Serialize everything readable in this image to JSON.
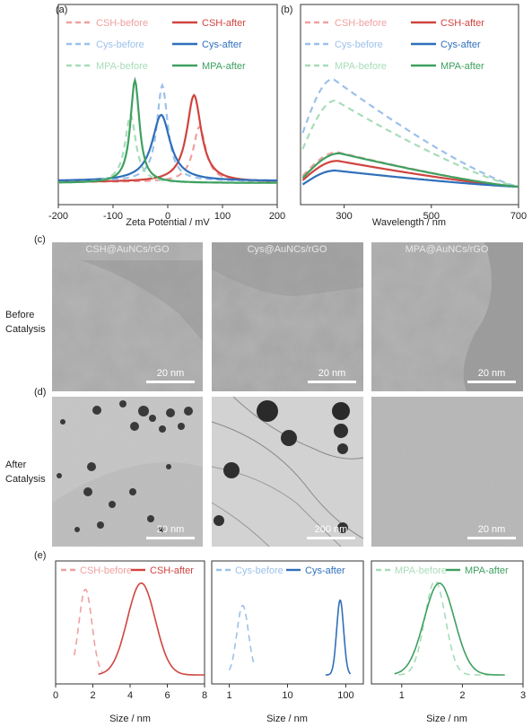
{
  "panel_labels": {
    "a": "(a)",
    "b": "(b)",
    "c": "(c)",
    "d": "(d)",
    "e": "(e)"
  },
  "colors": {
    "csh_before": "#f0a0a0",
    "csh_after": "#d0443f",
    "cys_before": "#9cc1ea",
    "cys_after": "#2f6fba",
    "mpa_before": "#a8dcb8",
    "mpa_after": "#3ea060"
  },
  "chart_data": [
    {
      "id": "a",
      "type": "line",
      "xlabel": "Zeta Potential / mV",
      "ylabel": "",
      "xlim": [
        -200,
        200
      ],
      "xticks": [
        -200,
        -100,
        0,
        100,
        200
      ],
      "yticks_shown": false,
      "legend_placement": "top",
      "series": [
        {
          "name": "CSH-before",
          "style": "dashed",
          "color": "#f0a0a0",
          "peak_x": 58,
          "width": 14,
          "peak_y": 0.58,
          "baseline": 0.02
        },
        {
          "name": "CSH-after",
          "style": "solid",
          "color": "#d0443f",
          "peak_x": 48,
          "width": 16,
          "peak_y": 0.9,
          "baseline": 0.02
        },
        {
          "name": "Cys-before",
          "style": "dashed",
          "color": "#9cc1ea",
          "peak_x": -10,
          "width": 12,
          "peak_y": 1.0,
          "baseline": 0.03
        },
        {
          "name": "Cys-after",
          "style": "solid",
          "color": "#2f6fba",
          "peak_x": -12,
          "width": 20,
          "peak_y": 0.7,
          "baseline": 0.03
        },
        {
          "name": "MPA-before",
          "style": "dashed",
          "color": "#a8dcb8",
          "peak_x": -68,
          "width": 12,
          "peak_y": 0.7,
          "baseline": 0.01
        },
        {
          "name": "MPA-after",
          "style": "solid",
          "color": "#3ea060",
          "peak_x": -60,
          "width": 10,
          "peak_y": 1.05,
          "baseline": 0.01
        }
      ]
    },
    {
      "id": "b",
      "type": "line",
      "xlabel": "Wavelength / nm",
      "ylabel": "",
      "xlim": [
        200,
        700
      ],
      "xticks": [
        300,
        500,
        700
      ],
      "yticks_shown": false,
      "legend_placement": "top",
      "series": [
        {
          "name": "CSH-before",
          "style": "dashed",
          "color": "#f0a0a0",
          "peak_x": 285,
          "peak_y": 0.32,
          "start_y": 0.1
        },
        {
          "name": "CSH-after",
          "style": "solid",
          "color": "#d0443f",
          "peak_x": 285,
          "peak_y": 0.24,
          "start_y": 0.06
        },
        {
          "name": "Cys-before",
          "style": "dashed",
          "color": "#9cc1ea",
          "peak_x": 275,
          "peak_y": 1.0,
          "start_y": 0.5
        },
        {
          "name": "Cys-after",
          "style": "solid",
          "color": "#2f6fba",
          "peak_x": 280,
          "peak_y": 0.15,
          "start_y": 0.02
        },
        {
          "name": "MPA-before",
          "style": "dashed",
          "color": "#a8dcb8",
          "peak_x": 280,
          "peak_y": 0.8,
          "start_y": 0.35
        },
        {
          "name": "MPA-after",
          "style": "solid",
          "color": "#3ea060",
          "peak_x": 290,
          "peak_y": 0.31,
          "start_y": 0.08
        }
      ]
    },
    {
      "id": "e1",
      "type": "line",
      "xlabel": "Size / nm",
      "xlim": [
        0,
        8
      ],
      "xticks": [
        0,
        2,
        4,
        6,
        8
      ],
      "legend_placement": "top",
      "series": [
        {
          "name": "CSH-before",
          "style": "dashed",
          "color": "#f0a0a0",
          "center": 1.6,
          "sigma": 0.35,
          "height": 0.8,
          "range": [
            1.0,
            2.5
          ]
        },
        {
          "name": "CSH-after",
          "style": "solid",
          "color": "#d0443f",
          "center": 4.6,
          "sigma": 0.75,
          "height": 0.86,
          "range": [
            2.3,
            8.0
          ]
        }
      ]
    },
    {
      "id": "e2",
      "type": "line",
      "xlabel": "Size / nm",
      "xscale": "log",
      "xlim": [
        0.5,
        200
      ],
      "xticks": [
        1,
        10,
        100
      ],
      "legend_placement": "top",
      "series": [
        {
          "name": "Cys-before",
          "style": "dashed",
          "color": "#9cc1ea",
          "center": 1.7,
          "sigma": 0.1,
          "height": 0.65,
          "range": [
            1.0,
            2.6
          ]
        },
        {
          "name": "Cys-after",
          "style": "solid",
          "color": "#2f6fba",
          "center": 80,
          "sigma": 0.06,
          "height": 0.7,
          "range": [
            45,
            120
          ]
        }
      ]
    },
    {
      "id": "e3",
      "type": "line",
      "xlabel": "Size / nm",
      "xlim": [
        0.5,
        3.0
      ],
      "xticks": [
        1,
        2,
        3
      ],
      "legend_placement": "top",
      "series": [
        {
          "name": "MPA-before",
          "style": "dashed",
          "color": "#a8dcb8",
          "center": 1.55,
          "sigma": 0.17,
          "height": 0.88,
          "range": [
            0.95,
            2.45
          ]
        },
        {
          "name": "MPA-after",
          "style": "solid",
          "color": "#3ea060",
          "center": 1.62,
          "sigma": 0.25,
          "height": 0.86,
          "range": [
            0.88,
            2.7
          ]
        }
      ]
    }
  ],
  "micrographs": {
    "row_before_label": [
      "Before",
      "Catalysis"
    ],
    "row_after_label": [
      "After",
      "Catalysis"
    ],
    "captions": [
      "CSH@AuNCs/rGO",
      "Cys@AuNCs/rGO",
      "MPA@AuNCs/rGO"
    ],
    "scale_bars": {
      "before": [
        "20 nm",
        "20 nm",
        "20 nm"
      ],
      "after": [
        "20 nm",
        "200 nm",
        "20 nm"
      ]
    }
  }
}
